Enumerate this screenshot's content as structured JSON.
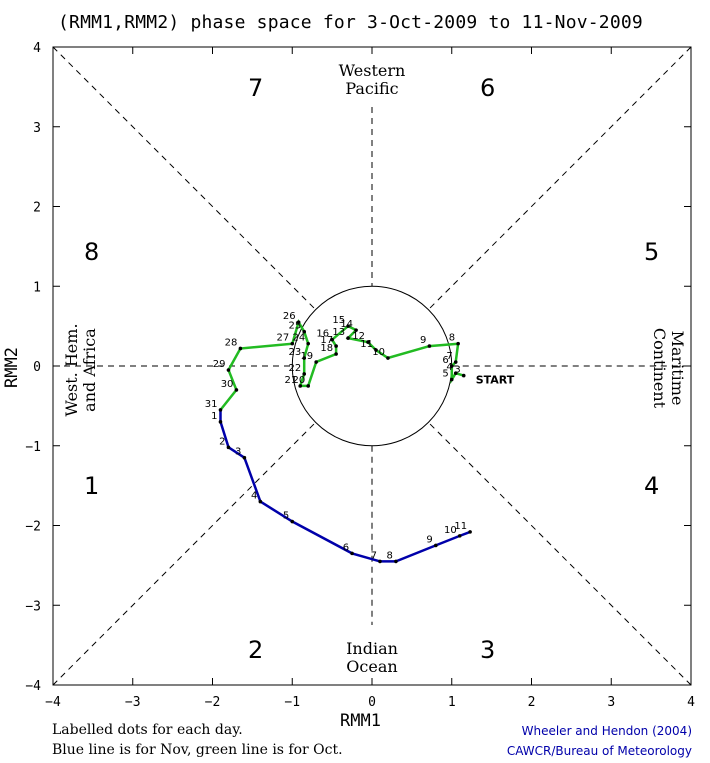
{
  "title": "(RMM1,RMM2) phase space for  3-Oct-2009 to 11-Nov-2009",
  "footer": {
    "note1": "Labelled dots for each day.",
    "note2": "Blue line is for Nov, green line is for Oct.",
    "credit1": "Wheeler and Hendon (2004)",
    "credit2": "CAWCR/Bureau of Meteorology"
  },
  "regions": {
    "top": [
      "Western",
      "Pacific"
    ],
    "bottom": [
      "Indian",
      "Ocean"
    ],
    "left": [
      "West. Hem.",
      "and Africa"
    ],
    "right": [
      "Maritime",
      "Continent"
    ]
  },
  "phase_numbers": [
    "1",
    "2",
    "3",
    "4",
    "5",
    "6",
    "7",
    "8"
  ],
  "colors": {
    "oct": "#22bb22",
    "nov": "#0000aa",
    "axis": "#000000"
  },
  "chart_data": {
    "type": "line",
    "xlabel": "RMM1",
    "ylabel": "RMM2",
    "xlim": [
      -4,
      4
    ],
    "ylim": [
      -4,
      4
    ],
    "xticks": [
      -4,
      -3,
      -2,
      -1,
      0,
      1,
      2,
      3,
      4
    ],
    "yticks": [
      -4,
      -3,
      -2,
      -1,
      0,
      1,
      2,
      3,
      4
    ],
    "unit_circle_radius": 1,
    "start_label": "START",
    "series": [
      {
        "name": "Oct",
        "points": [
          {
            "day": "3",
            "x": 1.15,
            "y": -0.12
          },
          {
            "day": "4",
            "x": 1.05,
            "y": -0.09
          },
          {
            "day": "5",
            "x": 1.0,
            "y": -0.17
          },
          {
            "day": "6",
            "x": 1.0,
            "y": 0.0
          },
          {
            "day": "7",
            "x": 1.05,
            "y": 0.05
          },
          {
            "day": "8",
            "x": 1.08,
            "y": 0.28
          },
          {
            "day": "9",
            "x": 0.72,
            "y": 0.25
          },
          {
            "day": "10",
            "x": 0.2,
            "y": 0.1
          },
          {
            "day": "11",
            "x": 0.05,
            "y": 0.2
          },
          {
            "day": "12",
            "x": -0.05,
            "y": 0.3
          },
          {
            "day": "13",
            "x": -0.3,
            "y": 0.35
          },
          {
            "day": "14",
            "x": -0.2,
            "y": 0.45
          },
          {
            "day": "15",
            "x": -0.3,
            "y": 0.5
          },
          {
            "day": "16",
            "x": -0.5,
            "y": 0.33
          },
          {
            "day": "17",
            "x": -0.45,
            "y": 0.25
          },
          {
            "day": "18",
            "x": -0.45,
            "y": 0.15
          },
          {
            "day": "19",
            "x": -0.7,
            "y": 0.05
          },
          {
            "day": "20",
            "x": -0.8,
            "y": -0.25
          },
          {
            "day": "21",
            "x": -0.9,
            "y": -0.25
          },
          {
            "day": "22",
            "x": -0.85,
            "y": -0.1
          },
          {
            "day": "23",
            "x": -0.85,
            "y": 0.1
          },
          {
            "day": "24",
            "x": -0.8,
            "y": 0.28
          },
          {
            "day": "25",
            "x": -0.85,
            "y": 0.43
          },
          {
            "day": "26",
            "x": -0.92,
            "y": 0.55
          },
          {
            "day": "27",
            "x": -1.0,
            "y": 0.28
          },
          {
            "day": "28",
            "x": -1.65,
            "y": 0.22
          },
          {
            "day": "29",
            "x": -1.8,
            "y": -0.05
          },
          {
            "day": "30",
            "x": -1.7,
            "y": -0.3
          },
          {
            "day": "31",
            "x": -1.9,
            "y": -0.55
          }
        ]
      },
      {
        "name": "Nov",
        "points": [
          {
            "day": "1",
            "x": -1.9,
            "y": -0.7
          },
          {
            "day": "2",
            "x": -1.8,
            "y": -1.02
          },
          {
            "day": "3",
            "x": -1.6,
            "y": -1.15
          },
          {
            "day": "4",
            "x": -1.4,
            "y": -1.7
          },
          {
            "day": "5",
            "x": -1.0,
            "y": -1.95
          },
          {
            "day": "6",
            "x": -0.25,
            "y": -2.35
          },
          {
            "day": "7",
            "x": 0.1,
            "y": -2.45
          },
          {
            "day": "8",
            "x": 0.3,
            "y": -2.45
          },
          {
            "day": "9",
            "x": 0.8,
            "y": -2.25
          },
          {
            "day": "10",
            "x": 1.1,
            "y": -2.13
          },
          {
            "day": "11",
            "x": 1.23,
            "y": -2.08
          }
        ]
      }
    ]
  }
}
